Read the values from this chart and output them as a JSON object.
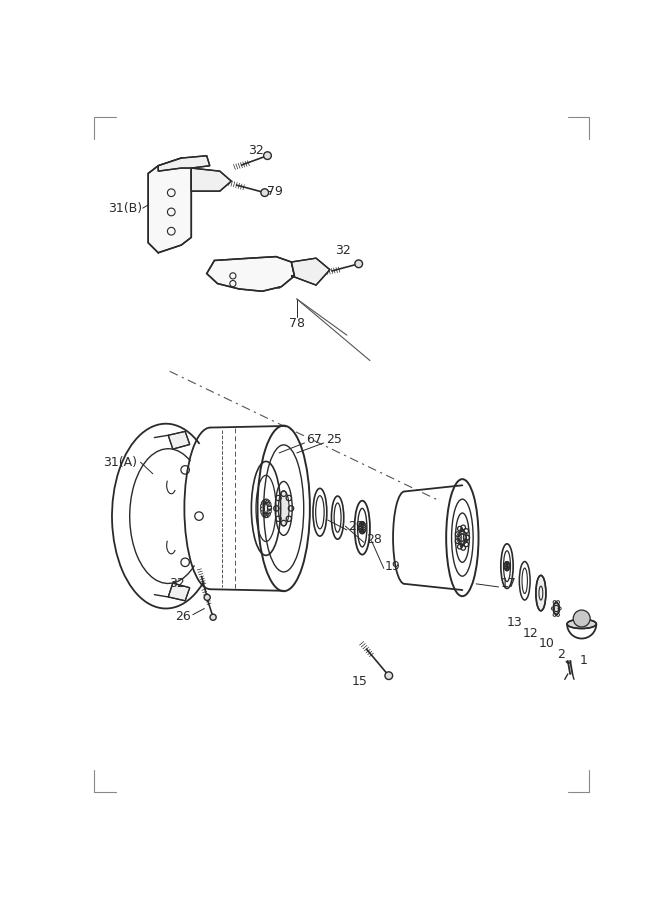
{
  "bg_color": "#ffffff",
  "lc": "#2a2a2a",
  "figsize": [
    6.67,
    9.0
  ],
  "dpi": 100
}
